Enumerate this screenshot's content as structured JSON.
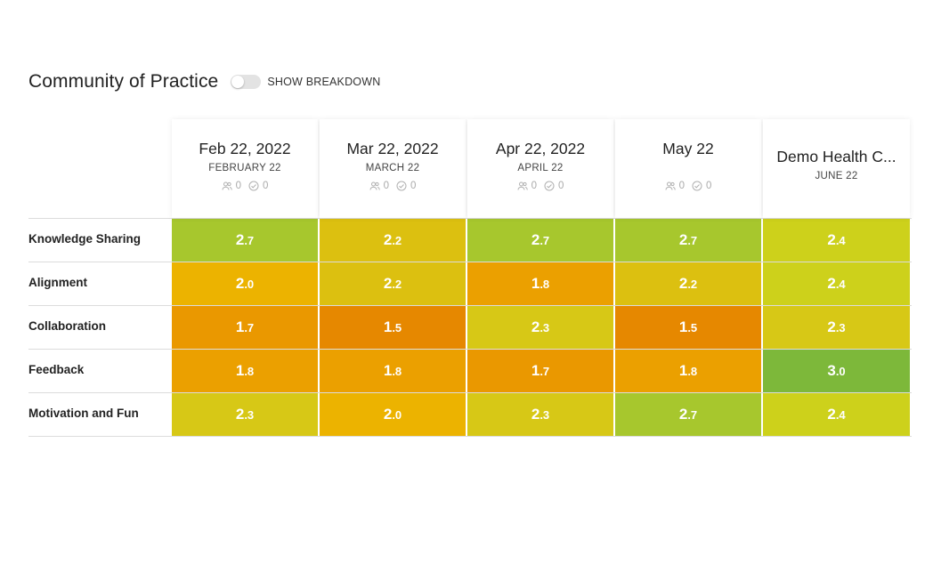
{
  "page": {
    "title": "Community of Practice",
    "toggle_label": "SHOW BREAKDOWN",
    "toggle_on": false
  },
  "columns": [
    {
      "title": "Feb 22, 2022",
      "subtitle": "FEBRUARY 22",
      "participants": "0",
      "completed": "0"
    },
    {
      "title": "Mar 22, 2022",
      "subtitle": "MARCH 22",
      "participants": "0",
      "completed": "0"
    },
    {
      "title": "Apr 22, 2022",
      "subtitle": "APRIL 22",
      "participants": "0",
      "completed": "0"
    },
    {
      "title": "May 22",
      "subtitle": "",
      "participants": "0",
      "completed": "0"
    },
    {
      "title": "Demo Health C...",
      "subtitle": "JUNE 22",
      "participants": null,
      "completed": null
    }
  ],
  "rows": [
    {
      "label": "Knowledge Sharing",
      "cells": [
        {
          "int": "2",
          "dec": ".7",
          "color": "#a7c72d"
        },
        {
          "int": "2",
          "dec": ".2",
          "color": "#dcc010"
        },
        {
          "int": "2",
          "dec": ".7",
          "color": "#a7c72d"
        },
        {
          "int": "2",
          "dec": ".7",
          "color": "#a7c72d"
        },
        {
          "int": "2",
          "dec": ".4",
          "color": "#cdd11b"
        }
      ]
    },
    {
      "label": "Alignment",
      "cells": [
        {
          "int": "2",
          "dec": ".0",
          "color": "#ecb300"
        },
        {
          "int": "2",
          "dec": ".2",
          "color": "#dcc010"
        },
        {
          "int": "1",
          "dec": ".8",
          "color": "#eba000"
        },
        {
          "int": "2",
          "dec": ".2",
          "color": "#dcc010"
        },
        {
          "int": "2",
          "dec": ".4",
          "color": "#cdd11b"
        }
      ]
    },
    {
      "label": "Collaboration",
      "cells": [
        {
          "int": "1",
          "dec": ".7",
          "color": "#ea9800"
        },
        {
          "int": "1",
          "dec": ".5",
          "color": "#e68800"
        },
        {
          "int": "2",
          "dec": ".3",
          "color": "#d7c816"
        },
        {
          "int": "1",
          "dec": ".5",
          "color": "#e68800"
        },
        {
          "int": "2",
          "dec": ".3",
          "color": "#d7c816"
        }
      ]
    },
    {
      "label": "Feedback",
      "cells": [
        {
          "int": "1",
          "dec": ".8",
          "color": "#eba000"
        },
        {
          "int": "1",
          "dec": ".8",
          "color": "#eba000"
        },
        {
          "int": "1",
          "dec": ".7",
          "color": "#ea9800"
        },
        {
          "int": "1",
          "dec": ".8",
          "color": "#eba000"
        },
        {
          "int": "3",
          "dec": ".0",
          "color": "#7db83a"
        }
      ]
    },
    {
      "label": "Motivation and Fun",
      "cells": [
        {
          "int": "2",
          "dec": ".3",
          "color": "#d7c816"
        },
        {
          "int": "2",
          "dec": ".0",
          "color": "#ecb300"
        },
        {
          "int": "2",
          "dec": ".3",
          "color": "#d7c816"
        },
        {
          "int": "2",
          "dec": ".7",
          "color": "#a7c72d"
        },
        {
          "int": "2",
          "dec": ".4",
          "color": "#cdd11b"
        }
      ]
    }
  ]
}
